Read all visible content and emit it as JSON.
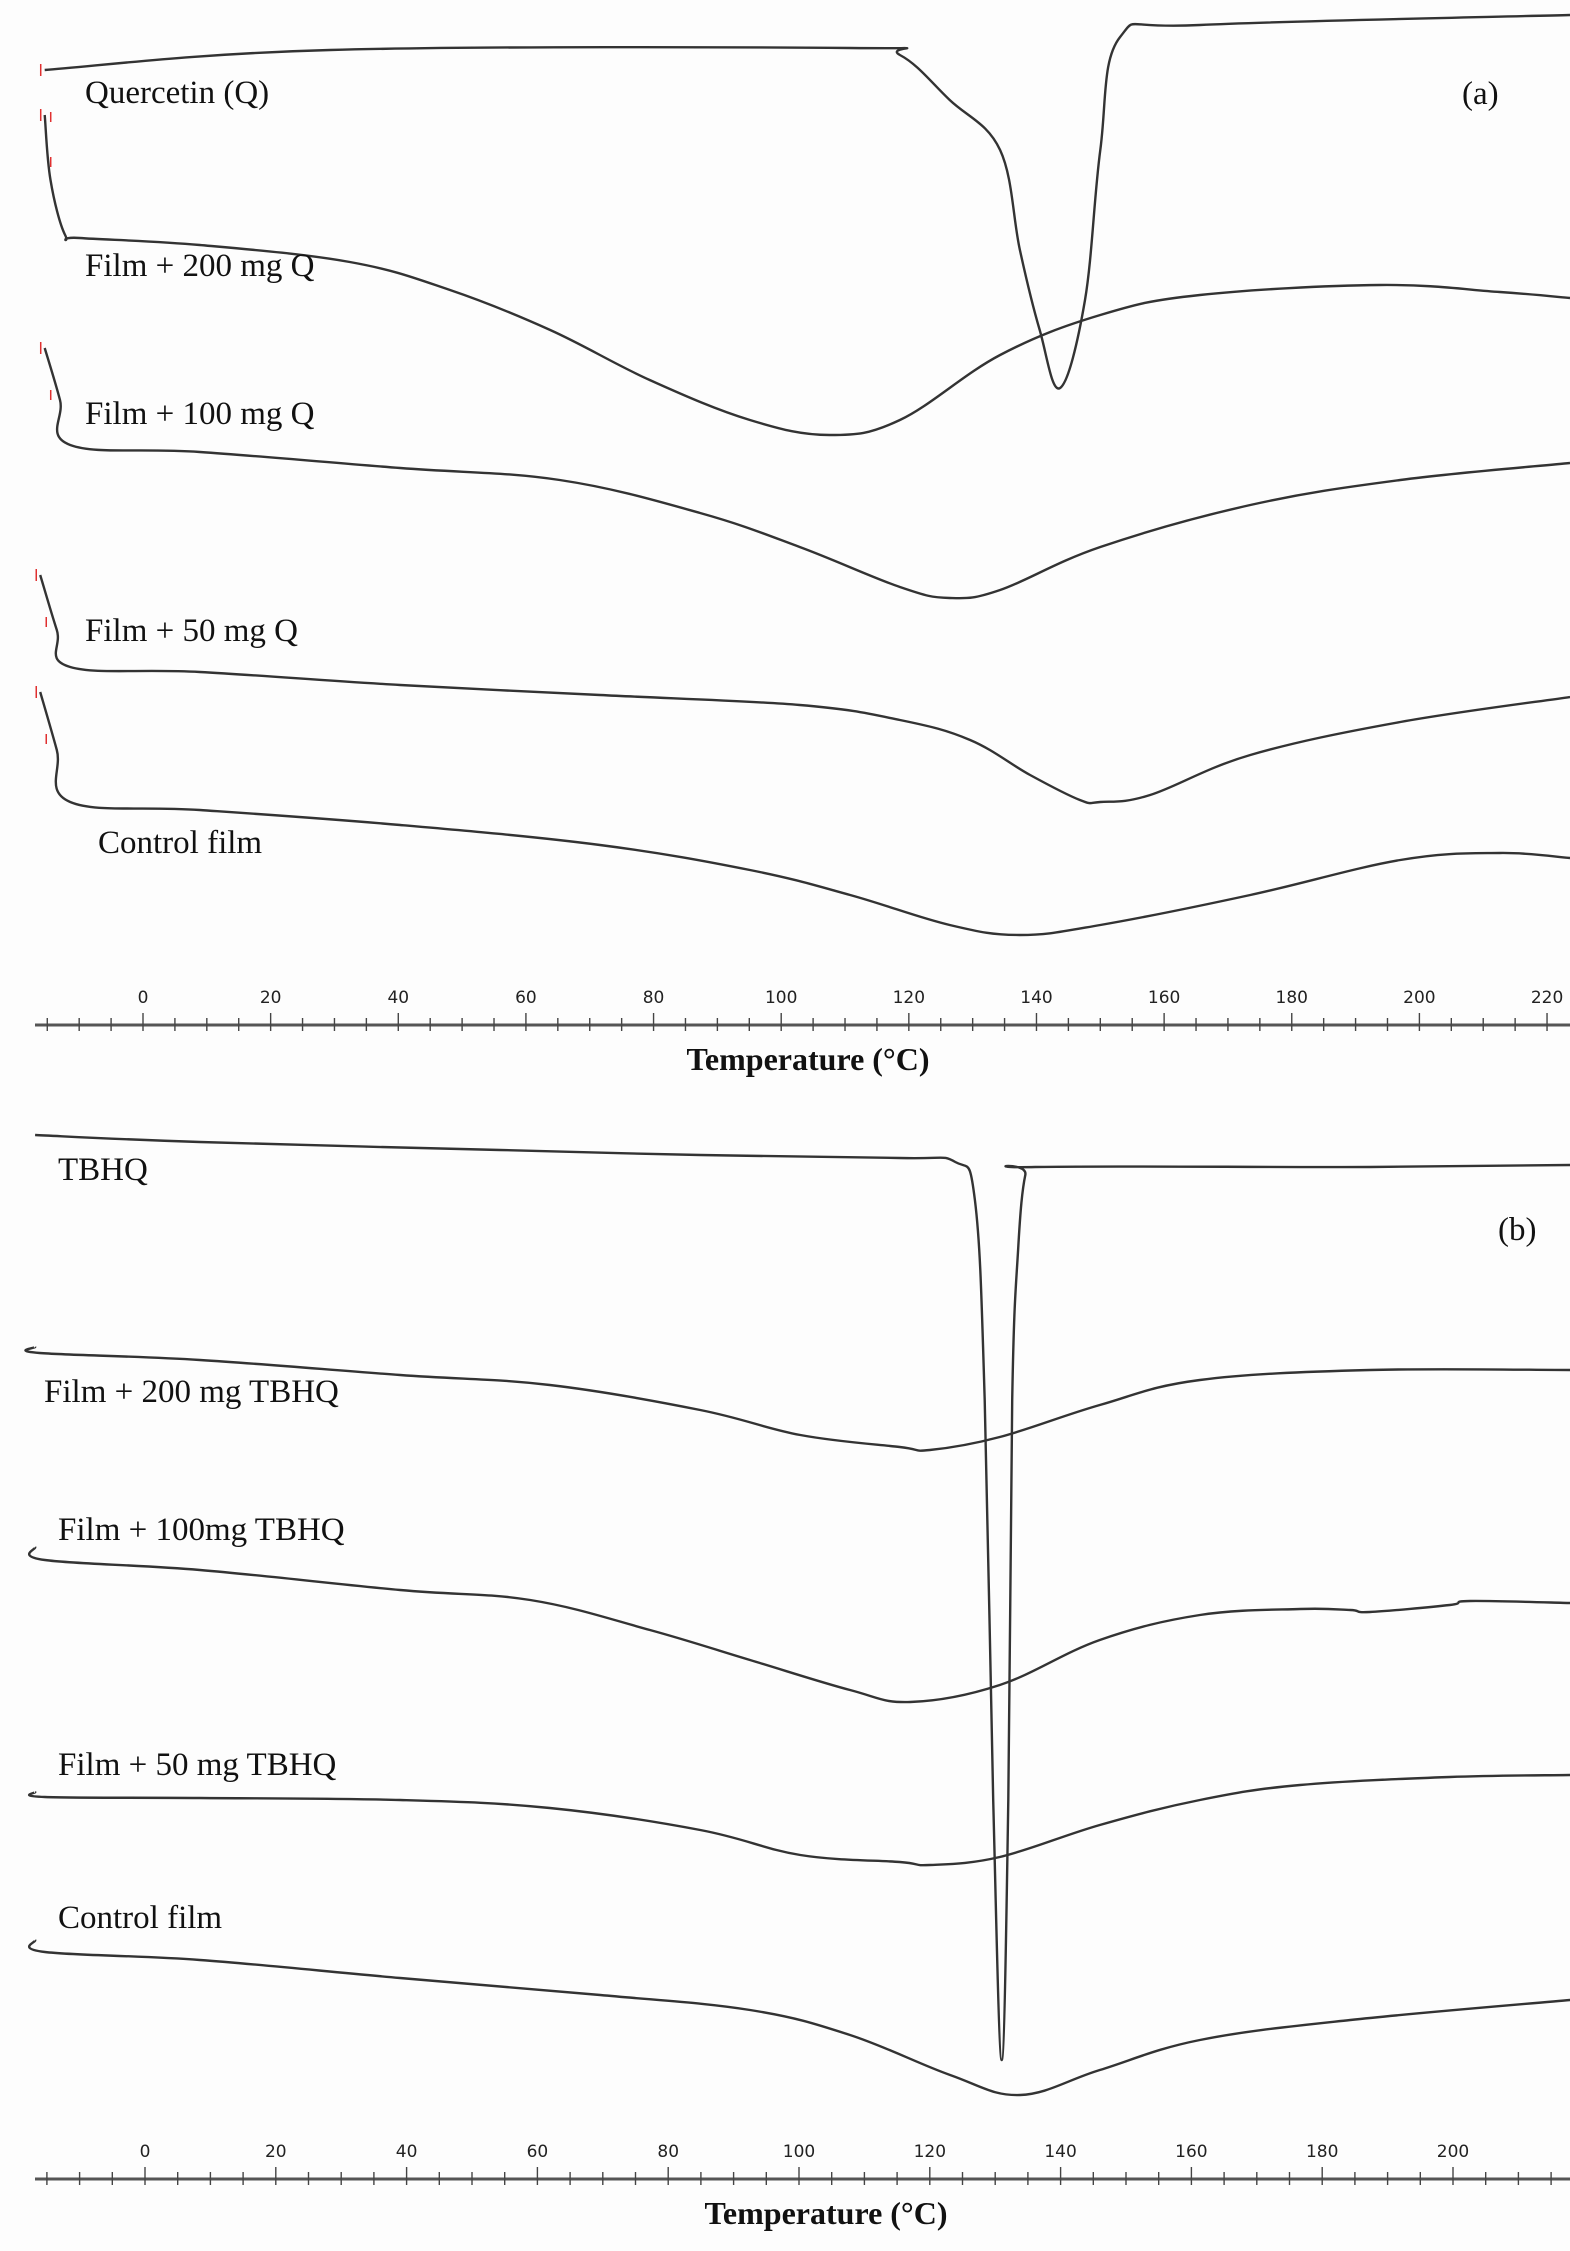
{
  "chart_data": [
    {
      "type": "line",
      "panel_label": "(a)",
      "xlabel": "Temperature (°C)",
      "ylabel": "",
      "xlim": [
        -16,
        224
      ],
      "x_ticks": [
        0,
        20,
        40,
        60,
        80,
        100,
        120,
        140,
        160,
        180,
        200,
        220
      ],
      "grid": false,
      "legend": "none (curve labels placed on curves)",
      "y_units": "arbitrary heat flow, curves offset vertically",
      "series": [
        {
          "name": "Quercetin (Q)",
          "points": [
            [
              -15.4,
              -7.0
            ],
            [
              29.3,
              -5.0
            ],
            [
              110.8,
              -4.8
            ],
            [
              118.6,
              -5.5
            ],
            [
              126.4,
              -10
            ],
            [
              134.3,
              -15
            ],
            [
              137.4,
              -25
            ],
            [
              140.5,
              -33
            ],
            [
              143.7,
              -38.8
            ],
            [
              147.6,
              -30
            ],
            [
              150,
              -15
            ],
            [
              153.1,
              -3.7
            ],
            [
              165.6,
              -2.5
            ],
            [
              223.6,
              -1.5
            ]
          ]
        },
        {
          "name": "Film + 200 mg Q",
          "points": [
            [
              -15.4,
              -11.5
            ],
            [
              -14.5,
              -18
            ],
            [
              -12.2,
              -23.5
            ],
            [
              -9.9,
              -23.8
            ],
            [
              8.9,
              -24.5
            ],
            [
              32.4,
              -26.2
            ],
            [
              48.1,
              -29
            ],
            [
              63.8,
              -33
            ],
            [
              79.4,
              -38
            ],
            [
              95.1,
              -42
            ],
            [
              107.6,
              -43.5
            ],
            [
              118.6,
              -42
            ],
            [
              134.3,
              -35.5
            ],
            [
              150,
              -31.5
            ],
            [
              165.6,
              -29.5
            ],
            [
              193.8,
              -28.5
            ],
            [
              212.6,
              -29.2
            ],
            [
              223.6,
              -29.8
            ]
          ]
        },
        {
          "name": "Film + 100 mg Q",
          "points": [
            [
              -15.4,
              -34.8
            ],
            [
              -13,
              -40
            ],
            [
              -11.4,
              -44.5
            ],
            [
              8.9,
              -45.2
            ],
            [
              40.3,
              -46.8
            ],
            [
              65.3,
              -48
            ],
            [
              87.3,
              -51.3
            ],
            [
              102.9,
              -54.7
            ],
            [
              118.6,
              -58.7
            ],
            [
              126.4,
              -59.8
            ],
            [
              134.3,
              -59
            ],
            [
              150,
              -54.7
            ],
            [
              173.5,
              -50.5
            ],
            [
              197,
              -48
            ],
            [
              223.6,
              -46.3
            ]
          ]
        },
        {
          "name": "Film + 50 mg Q",
          "points": [
            [
              -16.1,
              -57.5
            ],
            [
              -13.5,
              -63
            ],
            [
              -11.4,
              -66.7
            ],
            [
              8.9,
              -67.2
            ],
            [
              40.3,
              -68.5
            ],
            [
              71.6,
              -69.5
            ],
            [
              102.9,
              -70.5
            ],
            [
              118.6,
              -72
            ],
            [
              129.6,
              -74
            ],
            [
              139,
              -77.5
            ],
            [
              146.8,
              -80
            ],
            [
              150,
              -80.2
            ],
            [
              157.8,
              -79.5
            ],
            [
              173.5,
              -75.5
            ],
            [
              197,
              -72.2
            ],
            [
              223.6,
              -69.7
            ]
          ]
        },
        {
          "name": "Control film",
          "points": [
            [
              -16.1,
              -69.2
            ],
            [
              -13.5,
              -75
            ],
            [
              -11.4,
              -80.2
            ],
            [
              8.9,
              -81
            ],
            [
              40.3,
              -82.5
            ],
            [
              71.6,
              -84.5
            ],
            [
              95.1,
              -87
            ],
            [
              110.8,
              -89.5
            ],
            [
              126.4,
              -92.5
            ],
            [
              137.4,
              -93.5
            ],
            [
              150,
              -92.5
            ],
            [
              173.5,
              -89.5
            ],
            [
              197,
              -86
            ],
            [
              212.6,
              -85.3
            ],
            [
              223.6,
              -85.8
            ]
          ]
        }
      ]
    },
    {
      "type": "line",
      "panel_label": "(b)",
      "xlabel": "Temperature (°C)",
      "ylabel": "",
      "xlim": [
        -17,
        218
      ],
      "x_ticks": [
        0,
        20,
        40,
        60,
        80,
        100,
        120,
        140,
        160,
        180,
        200
      ],
      "grid": false,
      "legend": "none (curve labels placed on curves)",
      "y_units": "arbitrary heat flow, curves offset vertically",
      "series": [
        {
          "name": "TBHQ",
          "points": [
            [
              -16.8,
              -3.5
            ],
            [
              8.4,
              -4.2
            ],
            [
              54.3,
              -5
            ],
            [
              84.9,
              -5.5
            ],
            [
              115.4,
              -5.8
            ],
            [
              123.9,
              -6.2
            ],
            [
              126.9,
              -10
            ],
            [
              128.4,
              -30
            ],
            [
              129.7,
              -70
            ],
            [
              131,
              -96
            ],
            [
              132,
              -70
            ],
            [
              132.6,
              -30
            ],
            [
              133.5,
              -15
            ],
            [
              134.6,
              -7.5
            ],
            [
              136.1,
              -6.7
            ],
            [
              187.3,
              -6.7
            ],
            [
              217.9,
              -6.5
            ]
          ]
        },
        {
          "name": "Film + 200 mg TBHQ",
          "points": [
            [
              -16.8,
              -24.7
            ],
            [
              -16.1,
              -25.3
            ],
            [
              8.4,
              -26
            ],
            [
              39,
              -27.5
            ],
            [
              61.9,
              -28.5
            ],
            [
              84.9,
              -31
            ],
            [
              100.2,
              -33.5
            ],
            [
              115.4,
              -34.7
            ],
            [
              120,
              -35
            ],
            [
              130.7,
              -33.7
            ],
            [
              146,
              -30.5
            ],
            [
              161.3,
              -28
            ],
            [
              187.3,
              -27
            ],
            [
              217.9,
              -27
            ]
          ]
        },
        {
          "name": "Film + 100mg TBHQ",
          "points": [
            [
              -16.8,
              -44.7
            ],
            [
              -15.3,
              -46
            ],
            [
              8.4,
              -47
            ],
            [
              39,
              -49
            ],
            [
              58.9,
              -50
            ],
            [
              77.2,
              -53
            ],
            [
              92.5,
              -56
            ],
            [
              107.8,
              -59
            ],
            [
              117,
              -60.2
            ],
            [
              130.7,
              -58.5
            ],
            [
              146,
              -54
            ],
            [
              161.3,
              -51.5
            ],
            [
              176.6,
              -50.9
            ],
            [
              184.3,
              -51
            ],
            [
              187.3,
              -51.2
            ],
            [
              199.5,
              -50.5
            ],
            [
              202.6,
              -50.1
            ],
            [
              217.9,
              -50.3
            ]
          ]
        },
        {
          "name": "Film + 50 mg TBHQ",
          "points": [
            [
              -16.8,
              -69.2
            ],
            [
              -15.3,
              -69.7
            ],
            [
              8.4,
              -69.8
            ],
            [
              39,
              -70
            ],
            [
              61.9,
              -70.8
            ],
            [
              84.9,
              -73
            ],
            [
              100.2,
              -75.5
            ],
            [
              115.4,
              -76.2
            ],
            [
              120,
              -76.5
            ],
            [
              130.7,
              -75.7
            ],
            [
              146,
              -72.5
            ],
            [
              161.3,
              -70
            ],
            [
              176.6,
              -68.5
            ],
            [
              199.5,
              -67.7
            ],
            [
              217.9,
              -67.5
            ]
          ]
        },
        {
          "name": "Control film",
          "points": [
            [
              -16.8,
              -84
            ],
            [
              -15.3,
              -85.2
            ],
            [
              8.4,
              -86
            ],
            [
              39,
              -87.8
            ],
            [
              69.6,
              -89.5
            ],
            [
              92.5,
              -91
            ],
            [
              107.8,
              -93.5
            ],
            [
              123.1,
              -97.5
            ],
            [
              133.8,
              -99.5
            ],
            [
              146,
              -97
            ],
            [
              161.3,
              -94
            ],
            [
              184.3,
              -92
            ],
            [
              217.9,
              -90
            ]
          ]
        }
      ]
    }
  ],
  "colors": {
    "curve": "#333333",
    "marker": "#e03030"
  }
}
